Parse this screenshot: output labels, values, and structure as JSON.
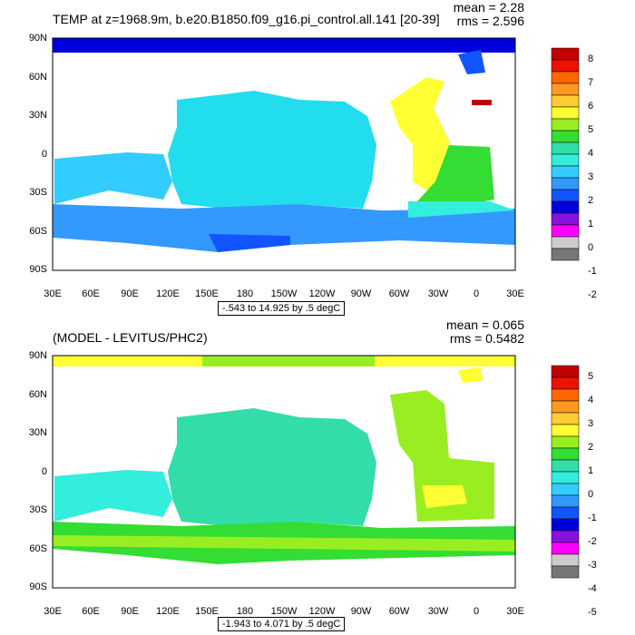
{
  "top_panel": {
    "title": "TEMP at z=1968.9m, b.e20.B1850.f09_g16.pi_control.all.141 [20-39]",
    "mean": "mean = 2.28",
    "rms": "rms = 2.596",
    "range": "-.543 to 14.925 by .5 degC",
    "colorbar_labels": [
      "8",
      "7",
      "6",
      "5",
      "4",
      "3",
      "2",
      "1",
      "0",
      "-1",
      "-2"
    ]
  },
  "bottom_panel": {
    "title": "(MODEL - LEVITUS/PHC2)",
    "mean": "mean = 0.065",
    "rms": "rms = 0.5482",
    "range": "-1.943 to 4.071 by .5 degC",
    "colorbar_labels": [
      "5",
      "4",
      "3",
      "2",
      "1",
      "0",
      "-1",
      "-2",
      "-3",
      "-4",
      "-5"
    ]
  },
  "lat_labels": [
    "90N",
    "60N",
    "30N",
    "0",
    "30S",
    "60S",
    "90S"
  ],
  "lon_labels": [
    "30E",
    "60E",
    "90E",
    "120E",
    "150E",
    "180",
    "150W",
    "120W",
    "90W",
    "60W",
    "30W",
    "0",
    "30E"
  ],
  "colorbar_colors": [
    "#c20000",
    "#ee1100",
    "#ff6600",
    "#ff9922",
    "#ffcc33",
    "#ffff33",
    "#99ee22",
    "#33dd33",
    "#33ddaa",
    "#33eedd",
    "#33ccff",
    "#3399ff",
    "#1155ff",
    "#0000dd",
    "#8811dd",
    "#ff00ff",
    "#cccccc",
    "#777777"
  ],
  "colors": {
    "ocean_cyan": "#22ddee",
    "ocean_light_cyan": "#33ccff",
    "ocean_blue": "#0000dd",
    "atlantic_yellow": "#ffff33",
    "atlantic_green": "#33dd33",
    "diff_green": "#33ee99",
    "diff_yellowgreen": "#99ee22"
  }
}
